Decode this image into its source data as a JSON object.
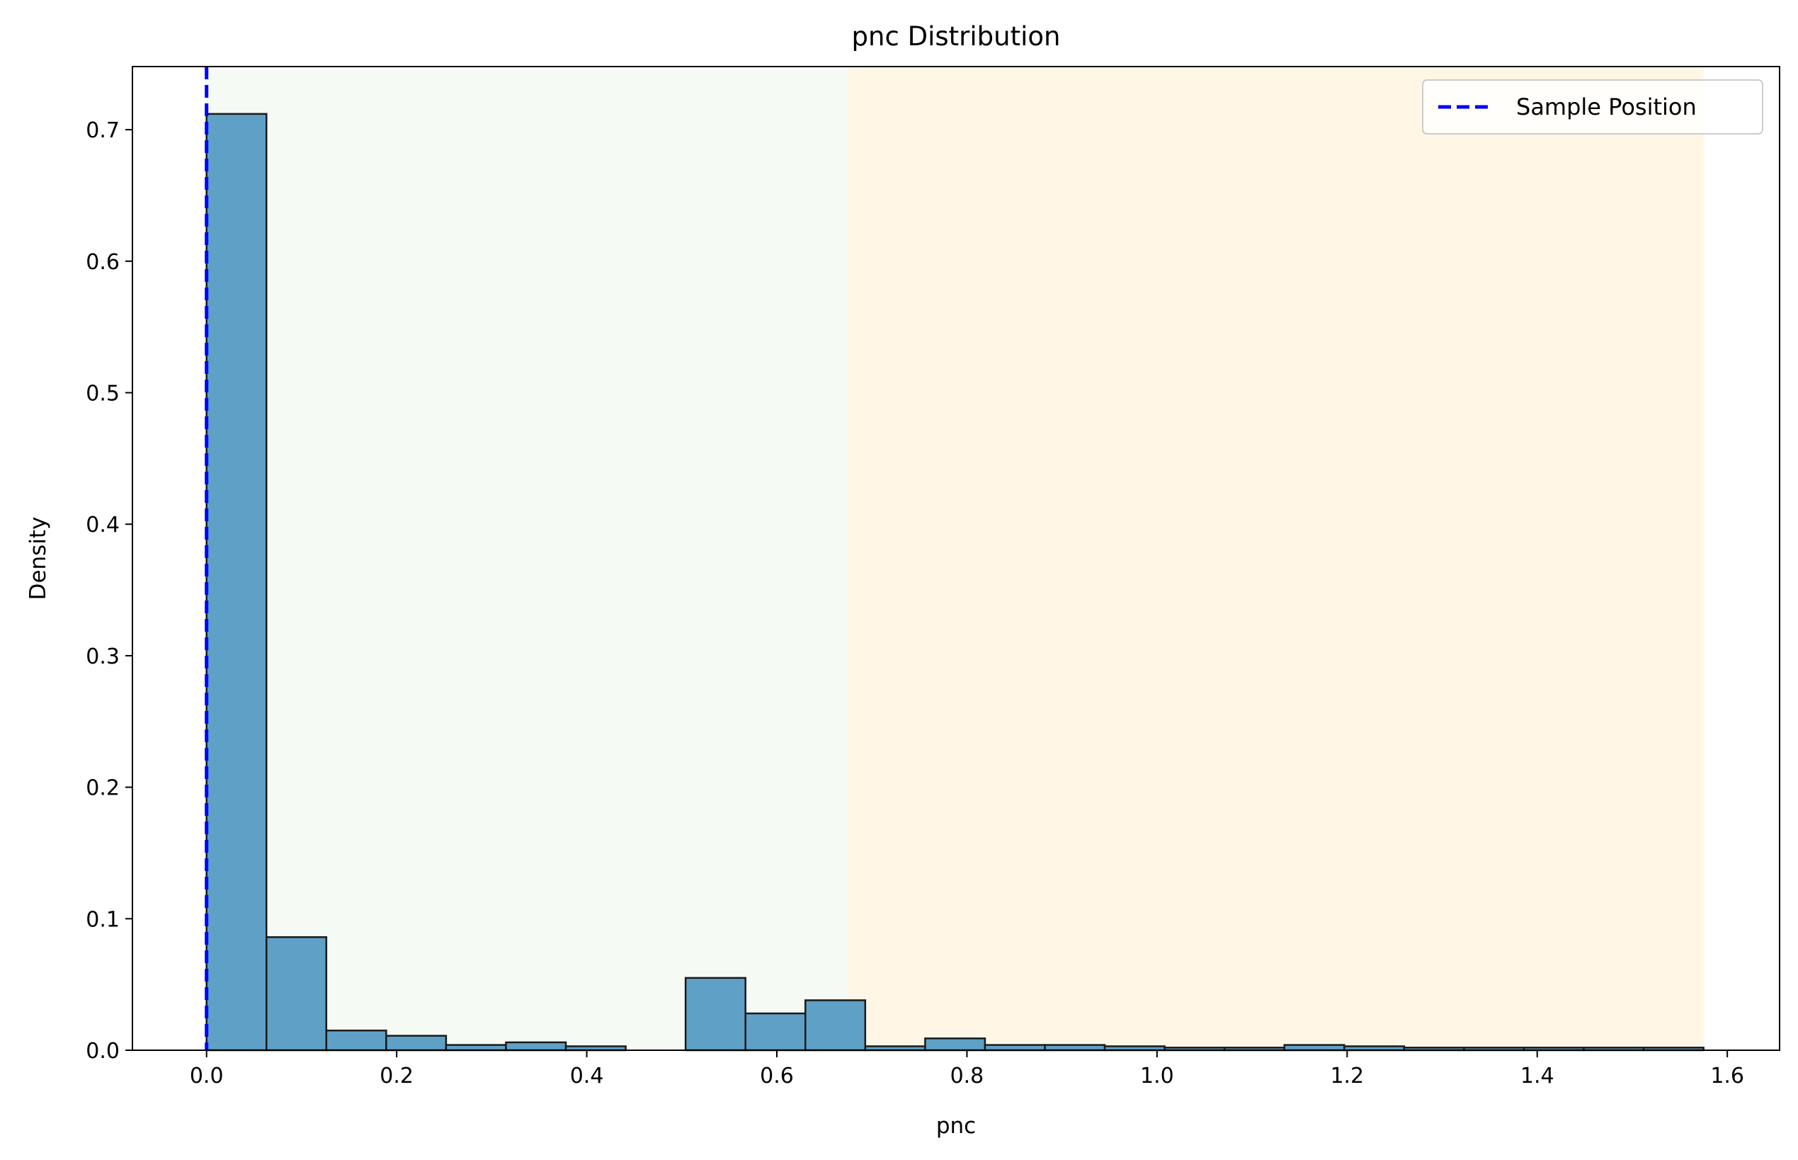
{
  "chart_data": {
    "type": "bar",
    "title": "pnc Distribution",
    "xlabel": "pnc",
    "ylabel": "Density",
    "xlim": [
      -0.078,
      1.655
    ],
    "ylim": [
      0,
      0.748
    ],
    "xticks": [
      0.0,
      0.2,
      0.4,
      0.6,
      0.8,
      1.0,
      1.2,
      1.4,
      1.6
    ],
    "xtick_labels": [
      "0.0",
      "0.2",
      "0.4",
      "0.6",
      "0.8",
      "1.0",
      "1.2",
      "1.4",
      "1.6"
    ],
    "yticks": [
      0.0,
      0.1,
      0.2,
      0.3,
      0.4,
      0.5,
      0.6,
      0.7
    ],
    "ytick_labels": [
      "0.0",
      "0.1",
      "0.2",
      "0.3",
      "0.4",
      "0.5",
      "0.6",
      "0.7"
    ],
    "bins": [
      {
        "x0": 0.0,
        "x1": 0.063,
        "value": 0.712
      },
      {
        "x0": 0.063,
        "x1": 0.126,
        "value": 0.086
      },
      {
        "x0": 0.126,
        "x1": 0.189,
        "value": 0.015
      },
      {
        "x0": 0.189,
        "x1": 0.252,
        "value": 0.011
      },
      {
        "x0": 0.252,
        "x1": 0.315,
        "value": 0.004
      },
      {
        "x0": 0.315,
        "x1": 0.378,
        "value": 0.006
      },
      {
        "x0": 0.378,
        "x1": 0.441,
        "value": 0.003
      },
      {
        "x0": 0.441,
        "x1": 0.504,
        "value": 0.0
      },
      {
        "x0": 0.504,
        "x1": 0.567,
        "value": 0.055
      },
      {
        "x0": 0.567,
        "x1": 0.63,
        "value": 0.028
      },
      {
        "x0": 0.63,
        "x1": 0.693,
        "value": 0.038
      },
      {
        "x0": 0.693,
        "x1": 0.756,
        "value": 0.003
      },
      {
        "x0": 0.756,
        "x1": 0.819,
        "value": 0.009
      },
      {
        "x0": 0.819,
        "x1": 0.882,
        "value": 0.004
      },
      {
        "x0": 0.882,
        "x1": 0.945,
        "value": 0.004
      },
      {
        "x0": 0.945,
        "x1": 1.008,
        "value": 0.003
      },
      {
        "x0": 1.008,
        "x1": 1.071,
        "value": 0.002
      },
      {
        "x0": 1.071,
        "x1": 1.134,
        "value": 0.002
      },
      {
        "x0": 1.134,
        "x1": 1.197,
        "value": 0.004
      },
      {
        "x0": 1.197,
        "x1": 1.26,
        "value": 0.003
      },
      {
        "x0": 1.26,
        "x1": 1.323,
        "value": 0.002
      },
      {
        "x0": 1.323,
        "x1": 1.386,
        "value": 0.002
      },
      {
        "x0": 1.386,
        "x1": 1.449,
        "value": 0.002
      },
      {
        "x0": 1.449,
        "x1": 1.512,
        "value": 0.002
      },
      {
        "x0": 1.512,
        "x1": 1.575,
        "value": 0.002
      }
    ],
    "shaded_regions": [
      {
        "x0": 0.0,
        "x1": 0.675,
        "color": "#e8f5e9",
        "opacity": 0.45
      },
      {
        "x0": 0.675,
        "x1": 1.575,
        "color": "#ffe9bf",
        "opacity": 0.4
      }
    ],
    "vline": {
      "x": 0.0,
      "color": "#0000ff",
      "style": "dashed"
    },
    "legend": {
      "position": "top-right",
      "entries": [
        {
          "label": "Sample Position",
          "color": "#0000ff",
          "style": "dashed"
        }
      ]
    },
    "bar_color": "#5fa0c7",
    "bar_edge_color": "#1a1a1a",
    "grid": false
  }
}
